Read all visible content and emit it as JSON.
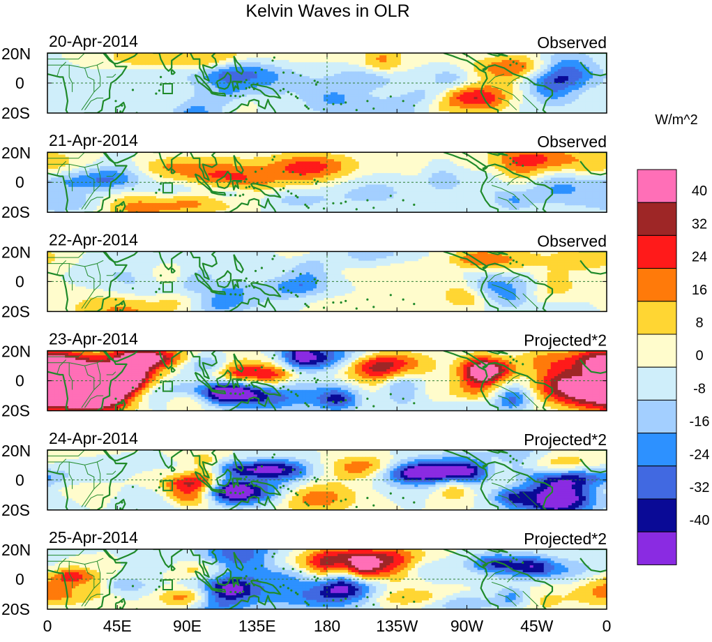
{
  "title": "Kelvin Waves in OLR",
  "panels": [
    {
      "date": "20-Apr-2014",
      "label": "Observed",
      "seed": 11,
      "amp": 1.0
    },
    {
      "date": "21-Apr-2014",
      "label": "Observed",
      "seed": 23,
      "amp": 1.0
    },
    {
      "date": "22-Apr-2014",
      "label": "Observed",
      "seed": 37,
      "amp": 1.0
    },
    {
      "date": "23-Apr-2014",
      "label": "Projected*2",
      "seed": 41,
      "amp": 1.9
    },
    {
      "date": "24-Apr-2014",
      "label": "Projected*2",
      "seed": 53,
      "amp": 1.8
    },
    {
      "date": "25-Apr-2014",
      "label": "Projected*2",
      "seed": 67,
      "amp": 1.6
    }
  ],
  "lat_labels": [
    "20N",
    "0",
    "20S"
  ],
  "lon_labels": [
    "0",
    "45E",
    "90E",
    "135E",
    "180",
    "135W",
    "90W",
    "45W",
    "0"
  ],
  "colorbar": {
    "units": "W/m^2",
    "levels": [
      "40",
      "32",
      "24",
      "16",
      "8",
      "0",
      "-8",
      "-16",
      "-24",
      "-32",
      "-40"
    ],
    "colors": [
      "#ff6fb7",
      "#9e2626",
      "#ff1a1a",
      "#ff7a0a",
      "#ffd633",
      "#fffccc",
      "#cfeefa",
      "#a3cfff",
      "#2d91ff",
      "#4169e1",
      "#0a0a96",
      "#8a2be2"
    ]
  },
  "style": {
    "coast_color": "#1f8a2a",
    "line_color": "#2e7d32",
    "frame_color": "#000000"
  }
}
